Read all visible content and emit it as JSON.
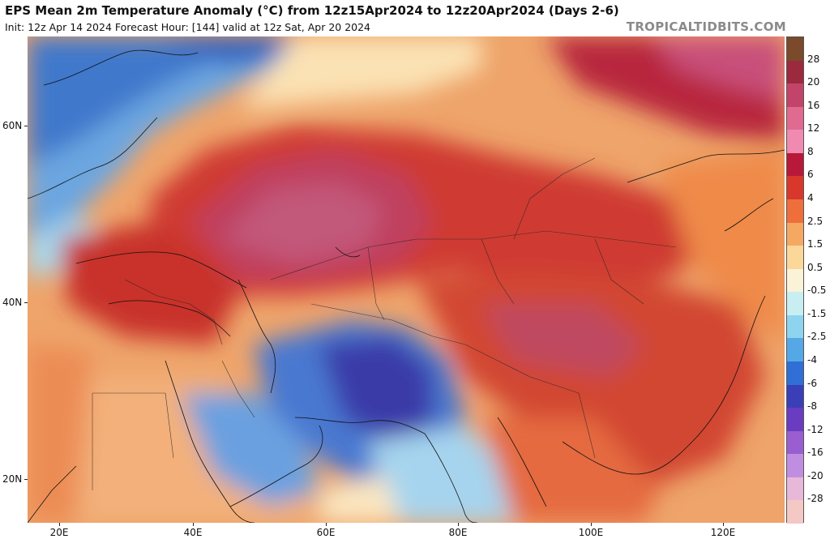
{
  "header": {
    "title": "EPS Mean 2m Temperature Anomaly (°C) from 12z15Apr2024 to 12z20Apr2024 (Days 2-6)",
    "subtitle": "Init: 12z Apr 14 2024   Forecast Hour: [144]   valid at 12z Sat, Apr 20 2024",
    "brand": "TROPICALTIDBITS.COM"
  },
  "axes": {
    "lat_labels": [
      "60N",
      "40N",
      "20N"
    ],
    "lon_labels": [
      "20E",
      "40E",
      "60E",
      "80E",
      "100E",
      "120E"
    ]
  },
  "legend": {
    "unit": "°C",
    "levels": [
      "28",
      "20",
      "16",
      "12",
      "8",
      "6",
      "4",
      "2.5",
      "1.5",
      "0.5",
      "-0.5",
      "-1.5",
      "-2.5",
      "-4",
      "-6",
      "-8",
      "-12",
      "-16",
      "-20",
      "-28"
    ],
    "colors": [
      "#7a4a2a",
      "#9c2a3e",
      "#c2446a",
      "#e06a90",
      "#f08ab0",
      "#b8183a",
      "#d8382c",
      "#ee6e3c",
      "#f5a862",
      "#fbd89a",
      "#fbf3d8",
      "#c8eef2",
      "#8ed4ee",
      "#55a8e6",
      "#2f6fd6",
      "#3a3fb8",
      "#6a3cc0",
      "#9a5ed0",
      "#c08ee0",
      "#e8b8d8",
      "#f4c8c4"
    ]
  },
  "map": {
    "region": "Asia, Middle East and Eastern Europe",
    "field": "2m temperature anomaly"
  }
}
